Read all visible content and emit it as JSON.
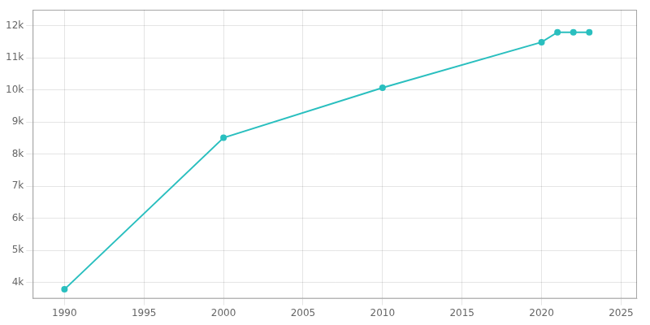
{
  "chart_data": {
    "type": "line",
    "x": [
      1990,
      2000,
      2010,
      2020,
      2021,
      2022,
      2023
    ],
    "values": [
      3791,
      8512,
      10070,
      11490,
      11800,
      11800,
      11800
    ],
    "color": "#2abfbf",
    "marker": "circle",
    "xlim": [
      1988,
      2026
    ],
    "ylim": [
      3500,
      12500
    ],
    "xticks": [
      1990,
      1995,
      2000,
      2005,
      2010,
      2015,
      2020,
      2025
    ],
    "yticks": [
      {
        "value": 4000,
        "label": "4k"
      },
      {
        "value": 5000,
        "label": "5k"
      },
      {
        "value": 6000,
        "label": "6k"
      },
      {
        "value": 7000,
        "label": "7k"
      },
      {
        "value": 8000,
        "label": "8k"
      },
      {
        "value": 9000,
        "label": "9k"
      },
      {
        "value": 10000,
        "label": "10k"
      },
      {
        "value": 11000,
        "label": "11k"
      },
      {
        "value": 12000,
        "label": "12k"
      }
    ],
    "grid": true
  }
}
